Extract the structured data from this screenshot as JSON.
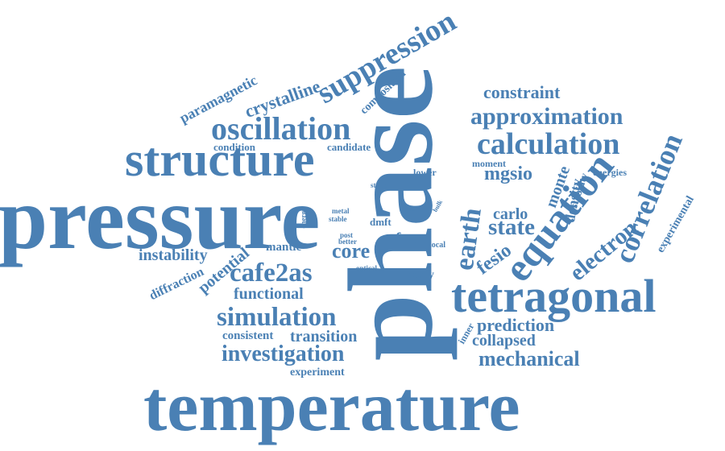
{
  "cloud": {
    "color": "#4a80b4",
    "background": "#ffffff",
    "words": {
      "pressure": "pressure",
      "phase": "phase",
      "temperature": "temperature",
      "structure": "structure",
      "tetragonal": "tetragonal",
      "equation": "equation",
      "oscillation": "oscillation",
      "suppression": "suppression",
      "calculation": "calculation",
      "correlation": "correlation",
      "approximation": "approximation",
      "simulation": "simulation",
      "investigation": "investigation",
      "cafe2as": "cafe2as",
      "earth": "earth",
      "state": "state",
      "electron": "electron",
      "mechanical": "mechanical",
      "collapsed": "collapsed",
      "prediction": "prediction",
      "crystalline": "crystalline",
      "paramagnetic": "paramagnetic",
      "constraint": "constraint",
      "mgsio": "mgsio",
      "core": "core",
      "functional": "functional",
      "transition": "transition",
      "instability": "instability",
      "potential": "potential",
      "fesio": "fesio",
      "monte": "monte",
      "carlo": "carlo",
      "density": "density",
      "experiment": "experiment",
      "consistent": "consistent",
      "diffraction": "diffraction",
      "composition": "composition",
      "free": "free",
      "theory": "theory",
      "mantle": "mantle",
      "experimental": "experimental",
      "stability": "stability",
      "condition": "condition",
      "candidate": "candidate",
      "moment": "moment",
      "energies": "energies",
      "lower": "lower",
      "static": "static",
      "iron": "iron",
      "bulk": "bulk",
      "dmft": "dmft",
      "metal": "metal",
      "stable": "stable",
      "energy": "energy",
      "post": "post",
      "better": "better",
      "local": "local",
      "optical": "optical",
      "inner": "inner"
    }
  }
}
